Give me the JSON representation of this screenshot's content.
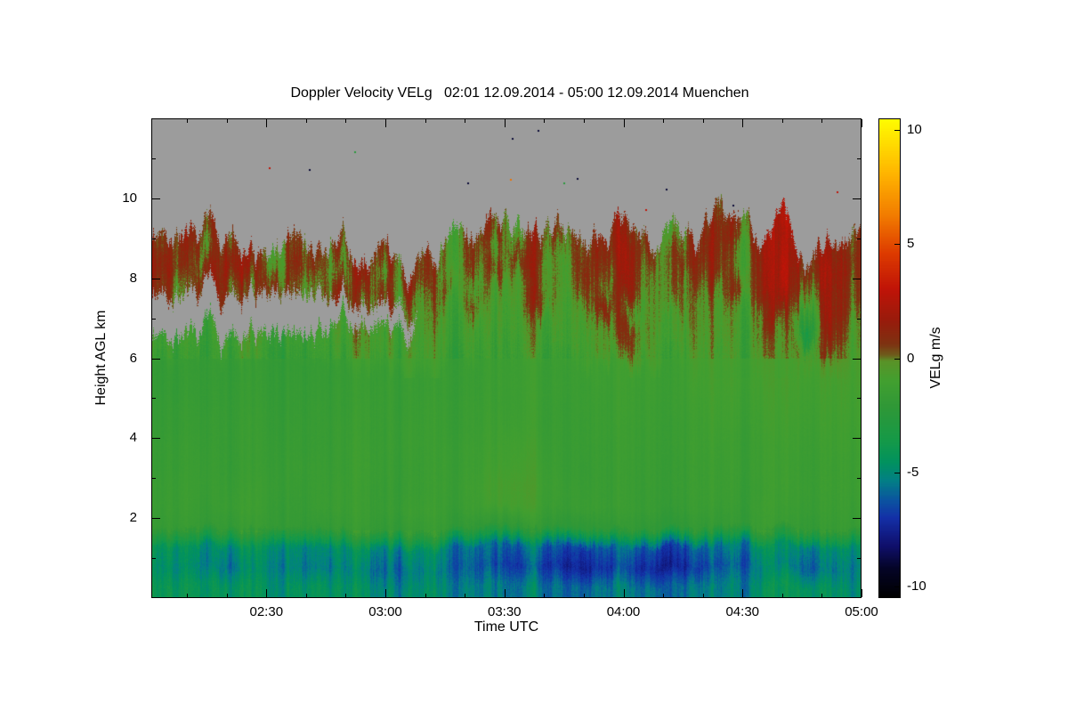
{
  "chart_data": {
    "type": "heatmap",
    "title": "Doppler Velocity VELg   02:01 12.09.2014 - 05:00 12.09.2014 Muenchen",
    "instrument_product": "Doppler Velocity VELg",
    "station": "Muenchen",
    "time_start": "02:01 12.09.2014",
    "time_end": "05:00 12.09.2014",
    "xlabel": "Time UTC",
    "ylabel": "Height AGL km",
    "colorbar_label": "VELg m/s",
    "x_range_minutes": [
      121,
      300
    ],
    "x_ticks": [
      {
        "minutes": 150,
        "label": "02:30"
      },
      {
        "minutes": 180,
        "label": "03:00"
      },
      {
        "minutes": 210,
        "label": "03:30"
      },
      {
        "minutes": 240,
        "label": "04:00"
      },
      {
        "minutes": 270,
        "label": "04:30"
      },
      {
        "minutes": 300,
        "label": "05:00"
      }
    ],
    "x_minor_tick_minutes": 10,
    "y_range_km": [
      0,
      12
    ],
    "y_ticks": [
      {
        "km": 2,
        "label": "2"
      },
      {
        "km": 4,
        "label": "4"
      },
      {
        "km": 6,
        "label": "6"
      },
      {
        "km": 8,
        "label": "8"
      },
      {
        "km": 10,
        "label": "10"
      }
    ],
    "y_minor_tick_km": 1,
    "value_range": [
      -10.5,
      10.5
    ],
    "colorbar_ticks": [
      {
        "value": 10,
        "label": "10"
      },
      {
        "value": 5,
        "label": "5"
      },
      {
        "value": 0,
        "label": "0"
      },
      {
        "value": -5,
        "label": "-5"
      },
      {
        "value": -10,
        "label": "-10"
      }
    ],
    "no_data_color": "#9c9c9c",
    "background_color": "#ffffff",
    "colormap": [
      [
        -10.5,
        "#000000"
      ],
      [
        -9.2,
        "#050528"
      ],
      [
        -8.2,
        "#10106e"
      ],
      [
        -7.0,
        "#1430a8"
      ],
      [
        -6.2,
        "#0b56a0"
      ],
      [
        -5.4,
        "#037f87"
      ],
      [
        -4.6,
        "#019260"
      ],
      [
        -3.6,
        "#169a48"
      ],
      [
        -2.2,
        "#2f9838"
      ],
      [
        -1.0,
        "#43a030"
      ],
      [
        -0.15,
        "#5a9328"
      ],
      [
        0.15,
        "#6f5a1c"
      ],
      [
        0.6,
        "#7e3312"
      ],
      [
        1.6,
        "#981c0c"
      ],
      [
        3.0,
        "#c01408"
      ],
      [
        4.6,
        "#de3c00"
      ],
      [
        6.2,
        "#f27b00"
      ],
      [
        8.0,
        "#ffb300"
      ],
      [
        9.5,
        "#ffe000"
      ],
      [
        10.5,
        "#ffff00"
      ]
    ],
    "grid": {
      "rows": 19,
      "cols": 32,
      "row_height_km": 0.5,
      "order": "bottom-up",
      "comment": "Doppler velocity m/s on a 0.5 km x ~5.6 min grid; null = no echo (gray)",
      "values": [
        [
          -4.2,
          -4.3,
          -4.5,
          -4.6,
          -4.8,
          -4.6,
          -4.4,
          -4.5,
          -4.6,
          -5.0,
          -5.2,
          -5.0,
          -4.8,
          -5.0,
          -5.2,
          -5.4,
          -5.6,
          -5.4,
          -5.6,
          -5.8,
          -5.6,
          -5.4,
          -5.6,
          -5.8,
          -5.6,
          -5.4,
          -5.2,
          -5.0,
          -4.8,
          -4.6,
          -4.8,
          -5.0
        ],
        [
          -4.8,
          -5.0,
          -5.4,
          -5.8,
          -5.4,
          -5.0,
          -5.2,
          -5.6,
          -5.2,
          -5.6,
          -6.0,
          -5.6,
          -5.2,
          -5.6,
          -6.0,
          -6.4,
          -6.8,
          -6.4,
          -7.0,
          -7.4,
          -7.0,
          -6.6,
          -7.2,
          -7.4,
          -7.0,
          -6.4,
          -6.0,
          -5.6,
          -5.8,
          -6.2,
          -5.8,
          -5.4
        ],
        [
          -4.4,
          -4.6,
          -5.0,
          -5.2,
          -4.8,
          -4.6,
          -4.8,
          -5.2,
          -4.8,
          -5.0,
          -5.4,
          -5.0,
          -4.8,
          -5.2,
          -5.6,
          -5.8,
          -6.0,
          -5.6,
          -6.2,
          -6.6,
          -6.2,
          -5.8,
          -6.4,
          -6.6,
          -6.2,
          -5.6,
          -5.2,
          -5.0,
          -5.2,
          -5.6,
          -5.2,
          -4.8
        ],
        [
          -1.8,
          -1.7,
          -1.9,
          -2.0,
          -1.8,
          -1.7,
          -1.8,
          -2.0,
          -1.8,
          -1.8,
          -2.0,
          -1.9,
          -1.7,
          -1.8,
          -2.0,
          -2.1,
          -2.0,
          -1.8,
          -2.1,
          -2.2,
          -2.1,
          -1.9,
          -2.1,
          -2.2,
          -2.0,
          -1.9,
          -1.8,
          -1.7,
          -1.8,
          -2.0,
          -1.8,
          -1.7
        ],
        [
          -1.6,
          -1.5,
          -1.7,
          -1.6,
          -1.5,
          -1.6,
          -1.7,
          -1.6,
          -1.5,
          -1.6,
          -1.7,
          -1.5,
          -1.4,
          -1.5,
          -1.3,
          -1.0,
          -0.8,
          -1.2,
          -1.5,
          -1.4,
          -1.6,
          -1.5,
          -1.6,
          -1.7,
          -1.6,
          -1.5,
          -1.6,
          -1.5,
          -1.6,
          -1.7,
          -1.6,
          -1.5
        ],
        [
          -1.6,
          -1.5,
          -1.6,
          -1.7,
          -1.6,
          -1.5,
          -1.6,
          -1.6,
          -1.5,
          -1.6,
          -1.7,
          -1.6,
          -1.5,
          -1.4,
          -1.2,
          -0.9,
          -0.7,
          -1.1,
          -1.4,
          -1.5,
          -1.6,
          -1.5,
          -1.6,
          -1.6,
          -1.5,
          -1.4,
          -1.5,
          -1.6,
          -1.5,
          -1.6,
          -1.5,
          -1.4
        ],
        [
          -1.7,
          -1.6,
          -1.6,
          -1.8,
          -1.7,
          -1.6,
          -1.5,
          -1.6,
          -1.6,
          -1.5,
          -1.6,
          -1.6,
          -1.5,
          -1.4,
          -1.3,
          -1.1,
          -0.9,
          -1.2,
          -1.5,
          -1.6,
          -1.6,
          -1.5,
          -1.5,
          -1.6,
          -1.5,
          -1.4,
          -1.4,
          -1.5,
          -1.5,
          -1.6,
          -1.5,
          -1.4
        ],
        [
          -1.7,
          -1.6,
          -1.7,
          -1.8,
          -1.7,
          -1.6,
          -1.6,
          -1.7,
          -1.6,
          -1.5,
          -1.6,
          -1.5,
          -1.5,
          -1.4,
          -1.3,
          -1.2,
          -1.0,
          -1.3,
          -1.5,
          -1.5,
          -1.6,
          -1.4,
          -1.5,
          -1.5,
          -1.4,
          -1.3,
          -1.4,
          -1.5,
          -1.4,
          -1.5,
          -1.4,
          -1.3
        ],
        [
          -1.8,
          -1.7,
          -1.7,
          -1.8,
          -1.7,
          -1.7,
          -1.6,
          -1.7,
          -1.6,
          -1.6,
          -1.6,
          -1.5,
          -1.5,
          -1.5,
          -1.4,
          -1.3,
          -1.2,
          -1.4,
          -1.5,
          -1.5,
          -1.5,
          -1.4,
          -1.4,
          -1.5,
          -1.4,
          -1.2,
          -1.3,
          -1.4,
          -1.3,
          -1.4,
          -1.3,
          -1.2
        ],
        [
          -1.8,
          -1.7,
          -1.8,
          -1.8,
          -1.8,
          -1.7,
          -1.7,
          -1.7,
          -1.7,
          -1.6,
          -1.6,
          -1.6,
          -1.5,
          -1.5,
          -1.4,
          -1.4,
          -1.3,
          -1.4,
          -1.5,
          -1.4,
          -1.5,
          -1.3,
          -1.4,
          -1.4,
          -1.3,
          -1.1,
          -1.2,
          -1.3,
          -1.2,
          -1.3,
          -1.2,
          -1.1
        ],
        [
          -1.9,
          -1.8,
          -1.8,
          -1.9,
          -1.8,
          -1.8,
          -1.7,
          -1.8,
          -1.7,
          -1.7,
          -1.6,
          -1.6,
          -1.6,
          -1.5,
          -1.5,
          -1.4,
          -1.3,
          -1.4,
          -1.4,
          -1.4,
          -1.4,
          -1.3,
          -1.3,
          -1.4,
          -1.2,
          -1.0,
          -1.1,
          -1.2,
          -1.1,
          -1.2,
          -1.1,
          -1.0
        ],
        [
          -1.9,
          -1.8,
          -1.9,
          -1.9,
          -1.9,
          -1.8,
          -1.8,
          -1.8,
          -1.8,
          -1.7,
          -1.7,
          -1.6,
          -1.6,
          -1.5,
          -1.5,
          -1.4,
          -1.3,
          -1.4,
          -1.4,
          -1.3,
          -1.4,
          -1.2,
          -1.3,
          -1.3,
          -1.1,
          -0.9,
          -1.0,
          -1.1,
          -1.0,
          -1.1,
          -0.9,
          -0.8
        ],
        [
          -1.4,
          -1.5,
          -1.6,
          -1.5,
          -1.4,
          -1.5,
          -1.4,
          -1.4,
          -1.3,
          -1.3,
          -1.2,
          -1.1,
          -1.2,
          -1.1,
          -1.0,
          -1.1,
          -0.9,
          -1.0,
          -0.8,
          -0.9,
          -0.6,
          0.3,
          -0.8,
          -0.7,
          -0.9,
          -0.5,
          -0.8,
          -0.9,
          -0.4,
          -0.8,
          0.2,
          -0.6
        ],
        [
          null,
          null,
          null,
          null,
          null,
          null,
          null,
          null,
          -1.0,
          -0.9,
          -1.0,
          -0.9,
          -1.0,
          -0.9,
          -0.8,
          -0.9,
          -0.7,
          -0.8,
          -0.6,
          -0.8,
          -0.5,
          0.8,
          -0.6,
          -0.7,
          -0.5,
          -0.6,
          -0.7,
          -0.5,
          1.5,
          -4.0,
          1.2,
          -0.4
        ],
        [
          null,
          null,
          null,
          null,
          null,
          null,
          null,
          null,
          null,
          null,
          null,
          null,
          -0.6,
          -0.8,
          0.5,
          -0.7,
          -0.5,
          0.9,
          -0.6,
          -0.4,
          1.2,
          -0.5,
          -0.7,
          0.6,
          -0.5,
          -0.3,
          0.8,
          -0.6,
          2.2,
          -2.5,
          1.5,
          0.3
        ],
        [
          0.8,
          -0.5,
          1.2,
          0.4,
          -0.6,
          1.0,
          0.3,
          -0.4,
          0.9,
          -0.5,
          0.6,
          -0.3,
          -0.5,
          0.4,
          -0.6,
          0.7,
          -0.4,
          0.5,
          -0.5,
          0.8,
          -0.3,
          1.4,
          -0.5,
          0.6,
          -0.4,
          0.9,
          -0.5,
          0.7,
          1.8,
          -0.6,
          1.3,
          0.5
        ],
        [
          1.2,
          0.5,
          -0.4,
          1.5,
          0.6,
          -0.5,
          1.1,
          0.4,
          -0.6,
          0.8,
          -0.4,
          0.9,
          0.3,
          -0.5,
          0.7,
          -0.4,
          1.0,
          0.5,
          -0.6,
          1.2,
          0.4,
          1.8,
          -0.4,
          0.8,
          0.5,
          1.1,
          -0.5,
          0.9,
          1.5,
          0.4,
          1.7,
          0.8
        ],
        [
          0.6,
          0.9,
          0.5,
          0.5,
          null,
          null,
          0.5,
          null,
          0.4,
          null,
          0.6,
          null,
          0.5,
          -0.4,
          0.8,
          0.6,
          -0.5,
          0.9,
          0.4,
          0.7,
          1.0,
          1.6,
          0.5,
          -0.4,
          0.8,
          1.2,
          0.6,
          0.9,
          1.8,
          null,
          1.2,
          0.6
        ],
        [
          null,
          null,
          null,
          null,
          null,
          null,
          null,
          null,
          null,
          null,
          null,
          null,
          null,
          null,
          null,
          null,
          null,
          null,
          null,
          null,
          null,
          0.8,
          null,
          null,
          null,
          0.6,
          null,
          null,
          null,
          null,
          null,
          null
        ]
      ]
    },
    "speckles": [
      {
        "u": 0.165,
        "h": 10.78,
        "v": 3
      },
      {
        "u": 0.222,
        "h": 10.73,
        "v": -9
      },
      {
        "u": 0.286,
        "h": 11.18,
        "v": -2.5
      },
      {
        "u": 0.445,
        "h": 10.4,
        "v": -9
      },
      {
        "u": 0.507,
        "h": 11.51,
        "v": -9
      },
      {
        "u": 0.505,
        "h": 10.49,
        "v": 6
      },
      {
        "u": 0.544,
        "h": 11.71,
        "v": -9
      },
      {
        "u": 0.58,
        "h": 10.4,
        "v": -2.5
      },
      {
        "u": 0.599,
        "h": 10.51,
        "v": -9
      },
      {
        "u": 0.695,
        "h": 9.73,
        "v": 3
      },
      {
        "u": 0.724,
        "h": 10.24,
        "v": -9
      },
      {
        "u": 0.818,
        "h": 9.84,
        "v": -9
      },
      {
        "u": 0.965,
        "h": 10.18,
        "v": 3
      }
    ]
  }
}
